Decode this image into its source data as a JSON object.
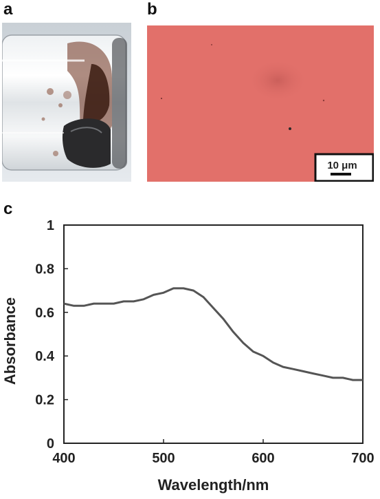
{
  "panels": {
    "a": {
      "label": "a"
    },
    "b": {
      "label": "b",
      "scale_bar": "10 μm"
    },
    "c": {
      "label": "c"
    }
  },
  "colors": {
    "film": "#e2706a",
    "line": "#555555",
    "frame": "#111111"
  },
  "chart_data": {
    "type": "line",
    "xlabel": "Wavelength/nm",
    "ylabel": "Absorbance",
    "xlim": [
      400,
      700
    ],
    "ylim": [
      0,
      1
    ],
    "xticks": [
      400,
      500,
      600,
      700
    ],
    "yticks": [
      0,
      0.2,
      0.4,
      0.6,
      0.8,
      1
    ],
    "ytick_labels": [
      "0",
      "0.2",
      "0.4",
      "0.6",
      "0.8",
      "1"
    ],
    "grid": false,
    "series": [
      {
        "x": [
          400,
          410,
          420,
          430,
          440,
          450,
          460,
          470,
          480,
          490,
          500,
          510,
          520,
          530,
          540,
          550,
          560,
          570,
          580,
          590,
          600,
          610,
          620,
          630,
          640,
          650,
          660,
          670,
          680,
          690,
          700
        ],
        "values": [
          0.64,
          0.63,
          0.63,
          0.64,
          0.64,
          0.64,
          0.65,
          0.65,
          0.66,
          0.68,
          0.69,
          0.71,
          0.71,
          0.7,
          0.67,
          0.62,
          0.57,
          0.51,
          0.46,
          0.42,
          0.4,
          0.37,
          0.35,
          0.34,
          0.33,
          0.32,
          0.31,
          0.3,
          0.3,
          0.29,
          0.29
        ]
      }
    ]
  }
}
